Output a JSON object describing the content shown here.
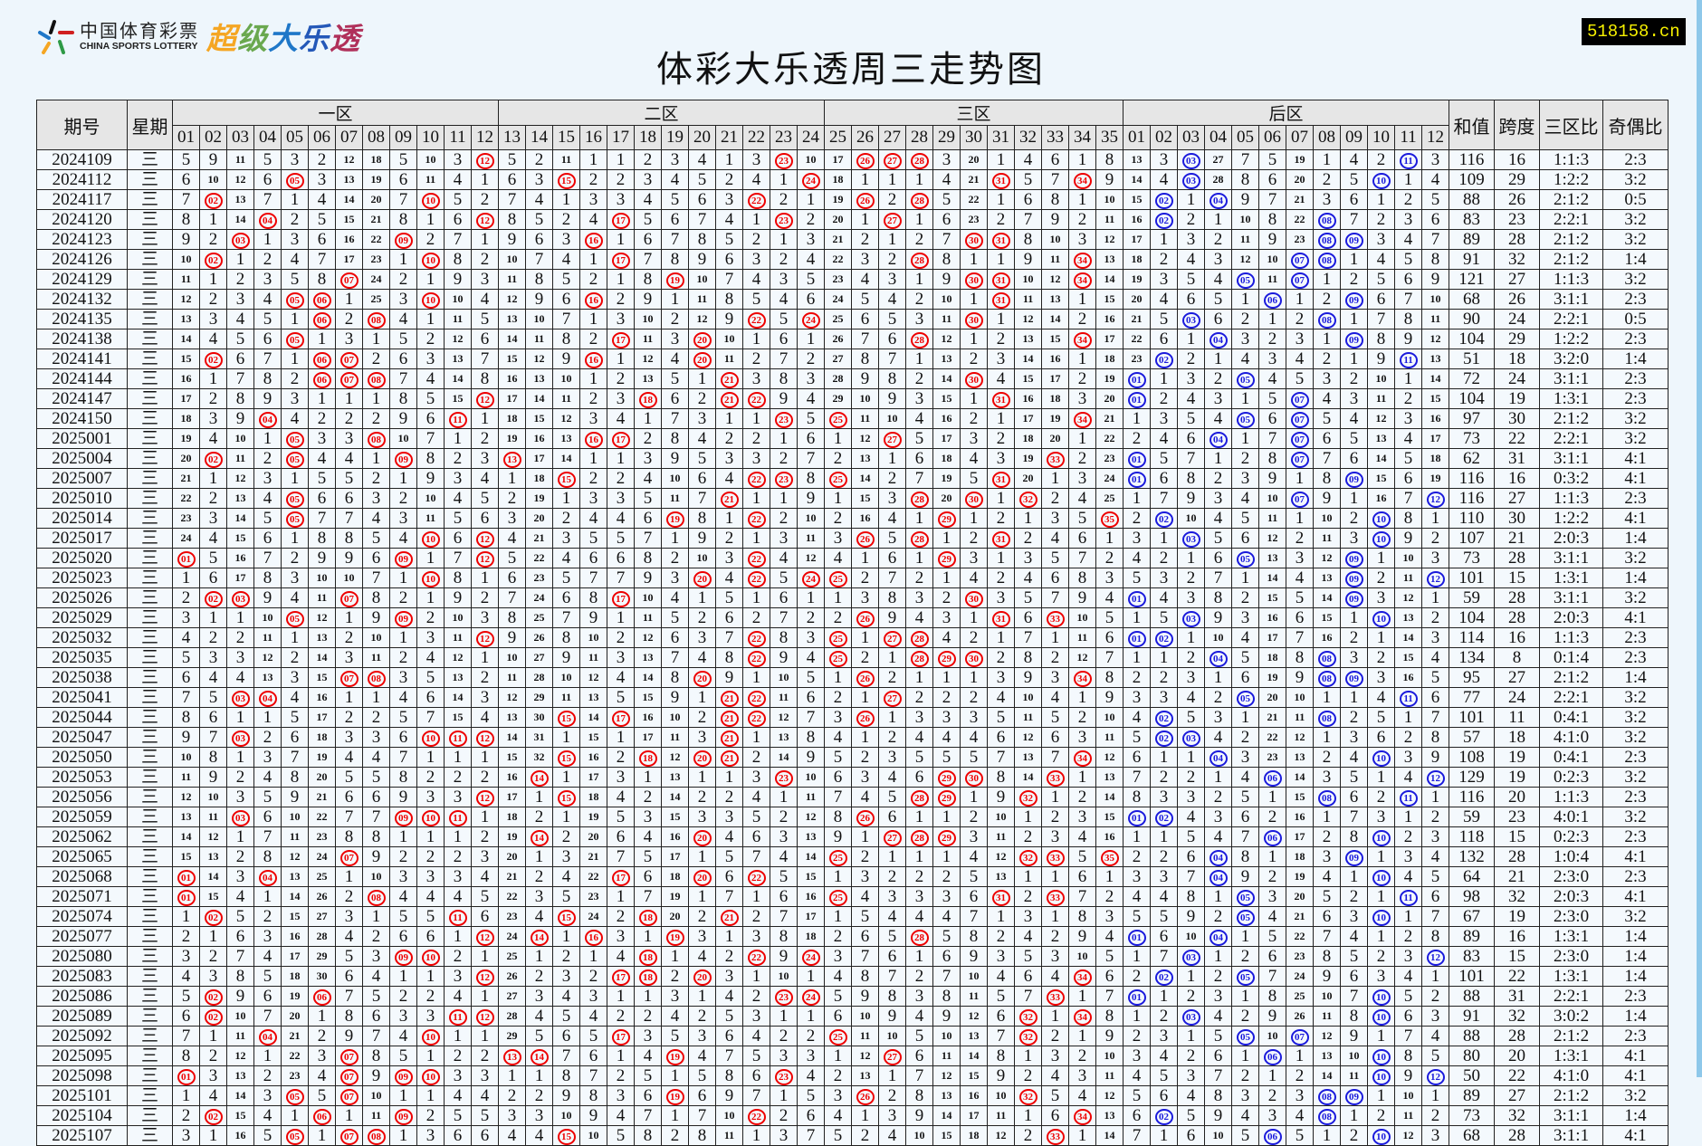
{
  "header": {
    "logo_cn": "中国体育彩票",
    "logo_en": "CHINA SPORTS LOTTERY",
    "brand_chars": [
      "超",
      "级",
      "大",
      "乐",
      "透"
    ],
    "brand_colors": [
      "#f5a623",
      "#6aa84f",
      "#1f77c8",
      "#2458b8",
      "#b0305a"
    ],
    "title": "体彩大乐透周三走势图",
    "site": "518158.cn"
  },
  "columns": {
    "period": "期号",
    "weekday": "星期",
    "zones": [
      "一区",
      "二区",
      "三区",
      "后区"
    ],
    "sum": "和值",
    "span": "跨度",
    "zone_ratio": "三区比",
    "odd_even": "奇偶比",
    "front_numbers": [
      "01",
      "02",
      "03",
      "04",
      "05",
      "06",
      "07",
      "08",
      "09",
      "10",
      "11",
      "12",
      "13",
      "14",
      "15",
      "16",
      "17",
      "18",
      "19",
      "20",
      "21",
      "22",
      "23",
      "24",
      "25",
      "26",
      "27",
      "28",
      "29",
      "30",
      "31",
      "32",
      "33",
      "34",
      "35"
    ],
    "back_numbers": [
      "01",
      "02",
      "03",
      "04",
      "05",
      "06",
      "07",
      "08",
      "09",
      "10",
      "11",
      "12"
    ]
  },
  "colors": {
    "front_hit": "#e00000",
    "back_hit": "#1a1adc"
  },
  "first_row_omission": {
    "front": [
      5,
      9,
      11,
      5,
      3,
      2,
      12,
      18,
      5,
      10,
      3,
      null,
      5,
      2,
      11,
      1,
      1,
      2,
      3,
      4,
      1,
      3,
      null,
      10,
      17,
      null,
      null,
      null,
      3,
      20,
      1,
      4,
      6,
      1,
      8
    ],
    "back": [
      13,
      3,
      null,
      27,
      7,
      5,
      19,
      1,
      4,
      2,
      null,
      3
    ]
  },
  "rows": [
    {
      "period": "2024109",
      "weekday": "三",
      "front": [
        12,
        23,
        26,
        27,
        28
      ],
      "back": [
        3,
        11
      ],
      "sum": "116",
      "span": "16",
      "zone_ratio": "1:1:3",
      "odd_even": "2:3"
    },
    {
      "period": "2024112",
      "weekday": "三",
      "front": [
        5,
        15,
        24,
        31,
        34
      ],
      "back": [
        3,
        10
      ],
      "sum": "109",
      "span": "29",
      "zone_ratio": "1:2:2",
      "odd_even": "3:2"
    },
    {
      "period": "2024117",
      "weekday": "三",
      "front": [
        2,
        10,
        22,
        26,
        28
      ],
      "back": [
        2,
        4
      ],
      "sum": "88",
      "span": "26",
      "zone_ratio": "2:1:2",
      "odd_even": "0:5"
    },
    {
      "period": "2024120",
      "weekday": "三",
      "front": [
        4,
        12,
        17,
        23,
        27
      ],
      "back": [
        2,
        8
      ],
      "sum": "83",
      "span": "23",
      "zone_ratio": "2:2:1",
      "odd_even": "3:2"
    },
    {
      "period": "2024123",
      "weekday": "三",
      "front": [
        3,
        9,
        16,
        30,
        31
      ],
      "back": [
        8,
        9
      ],
      "sum": "89",
      "span": "28",
      "zone_ratio": "2:1:2",
      "odd_even": "3:2"
    },
    {
      "period": "2024126",
      "weekday": "三",
      "front": [
        2,
        10,
        17,
        28,
        34
      ],
      "back": [
        7,
        8
      ],
      "sum": "91",
      "span": "32",
      "zone_ratio": "2:1:2",
      "odd_even": "1:4"
    },
    {
      "period": "2024129",
      "weekday": "三",
      "front": [
        7,
        19,
        30,
        31,
        34
      ],
      "back": [
        5,
        7
      ],
      "sum": "121",
      "span": "27",
      "zone_ratio": "1:1:3",
      "odd_even": "3:2"
    },
    {
      "period": "2024132",
      "weekday": "三",
      "front": [
        5,
        6,
        10,
        16,
        31
      ],
      "back": [
        6,
        9
      ],
      "sum": "68",
      "span": "26",
      "zone_ratio": "3:1:1",
      "odd_even": "2:3"
    },
    {
      "period": "2024135",
      "weekday": "三",
      "front": [
        6,
        8,
        22,
        24,
        30
      ],
      "back": [
        3,
        8
      ],
      "sum": "90",
      "span": "24",
      "zone_ratio": "2:2:1",
      "odd_even": "0:5"
    },
    {
      "period": "2024138",
      "weekday": "三",
      "front": [
        5,
        17,
        20,
        28,
        34
      ],
      "back": [
        4,
        9
      ],
      "sum": "104",
      "span": "29",
      "zone_ratio": "1:2:2",
      "odd_even": "2:3"
    },
    {
      "period": "2024141",
      "weekday": "三",
      "front": [
        2,
        6,
        7,
        16,
        20
      ],
      "back": [
        2,
        11
      ],
      "sum": "51",
      "span": "18",
      "zone_ratio": "3:2:0",
      "odd_even": "1:4"
    },
    {
      "period": "2024144",
      "weekday": "三",
      "front": [
        6,
        7,
        8,
        21,
        30
      ],
      "back": [
        1,
        5
      ],
      "sum": "72",
      "span": "24",
      "zone_ratio": "3:1:1",
      "odd_even": "2:3"
    },
    {
      "period": "2024147",
      "weekday": "三",
      "front": [
        12,
        18,
        21,
        22,
        31
      ],
      "back": [
        1,
        7
      ],
      "sum": "104",
      "span": "19",
      "zone_ratio": "1:3:1",
      "odd_even": "2:3"
    },
    {
      "period": "2024150",
      "weekday": "三",
      "front": [
        4,
        11,
        23,
        25,
        34
      ],
      "back": [
        5,
        7
      ],
      "sum": "97",
      "span": "30",
      "zone_ratio": "2:1:2",
      "odd_even": "3:2"
    },
    {
      "period": "2025001",
      "weekday": "三",
      "front": [
        5,
        8,
        16,
        17,
        27
      ],
      "back": [
        4,
        7
      ],
      "sum": "73",
      "span": "22",
      "zone_ratio": "2:2:1",
      "odd_even": "3:2"
    },
    {
      "period": "2025004",
      "weekday": "三",
      "front": [
        2,
        5,
        9,
        13,
        33
      ],
      "back": [
        1,
        7
      ],
      "sum": "62",
      "span": "31",
      "zone_ratio": "3:1:1",
      "odd_even": "4:1"
    },
    {
      "period": "2025007",
      "weekday": "三",
      "front": [
        15,
        22,
        23,
        25,
        31
      ],
      "back": [
        1,
        9
      ],
      "sum": "116",
      "span": "16",
      "zone_ratio": "0:3:2",
      "odd_even": "4:1"
    },
    {
      "period": "2025010",
      "weekday": "三",
      "front": [
        5,
        21,
        28,
        30,
        32
      ],
      "back": [
        7,
        12
      ],
      "sum": "116",
      "span": "27",
      "zone_ratio": "1:1:3",
      "odd_even": "2:3"
    },
    {
      "period": "2025014",
      "weekday": "三",
      "front": [
        5,
        19,
        22,
        29,
        35
      ],
      "back": [
        2,
        10
      ],
      "sum": "110",
      "span": "30",
      "zone_ratio": "1:2:2",
      "odd_even": "4:1"
    },
    {
      "period": "2025017",
      "weekday": "三",
      "front": [
        10,
        12,
        26,
        28,
        31
      ],
      "back": [
        3,
        10
      ],
      "sum": "107",
      "span": "21",
      "zone_ratio": "2:0:3",
      "odd_even": "1:4"
    },
    {
      "period": "2025020",
      "weekday": "三",
      "front": [
        1,
        9,
        12,
        22,
        29
      ],
      "back": [
        5,
        9
      ],
      "sum": "73",
      "span": "28",
      "zone_ratio": "3:1:1",
      "odd_even": "3:2"
    },
    {
      "period": "2025023",
      "weekday": "三",
      "front": [
        10,
        20,
        22,
        24,
        25
      ],
      "back": [
        9,
        12
      ],
      "sum": "101",
      "span": "15",
      "zone_ratio": "1:3:1",
      "odd_even": "1:4"
    },
    {
      "period": "2025026",
      "weekday": "三",
      "front": [
        2,
        3,
        7,
        17,
        30
      ],
      "back": [
        1,
        9
      ],
      "sum": "59",
      "span": "28",
      "zone_ratio": "3:1:1",
      "odd_even": "3:2"
    },
    {
      "period": "2025029",
      "weekday": "三",
      "front": [
        5,
        9,
        26,
        31,
        33
      ],
      "back": [
        3,
        10
      ],
      "sum": "104",
      "span": "28",
      "zone_ratio": "2:0:3",
      "odd_even": "4:1"
    },
    {
      "period": "2025032",
      "weekday": "三",
      "front": [
        12,
        22,
        25,
        27,
        28
      ],
      "back": [
        1,
        2
      ],
      "sum": "114",
      "span": "16",
      "zone_ratio": "1:1:3",
      "odd_even": "2:3"
    },
    {
      "period": "2025035",
      "weekday": "三",
      "front": [
        22,
        25,
        28,
        29,
        30
      ],
      "back": [
        4,
        8
      ],
      "sum": "134",
      "span": "8",
      "zone_ratio": "0:1:4",
      "odd_even": "2:3"
    },
    {
      "period": "2025038",
      "weekday": "三",
      "front": [
        7,
        8,
        20,
        26,
        34
      ],
      "back": [
        8,
        9
      ],
      "sum": "95",
      "span": "27",
      "zone_ratio": "2:1:2",
      "odd_even": "1:4"
    },
    {
      "period": "2025041",
      "weekday": "三",
      "front": [
        3,
        4,
        21,
        22,
        27
      ],
      "back": [
        5,
        11
      ],
      "sum": "77",
      "span": "24",
      "zone_ratio": "2:2:1",
      "odd_even": "3:2"
    },
    {
      "period": "2025044",
      "weekday": "三",
      "front": [
        15,
        17,
        21,
        22,
        26
      ],
      "back": [
        2,
        8
      ],
      "sum": "101",
      "span": "11",
      "zone_ratio": "0:4:1",
      "odd_even": "3:2"
    },
    {
      "period": "2025047",
      "weekday": "三",
      "front": [
        3,
        10,
        11,
        12,
        21
      ],
      "back": [
        2,
        3
      ],
      "sum": "57",
      "span": "18",
      "zone_ratio": "4:1:0",
      "odd_even": "3:2"
    },
    {
      "period": "2025050",
      "weekday": "三",
      "front": [
        15,
        18,
        20,
        21,
        34
      ],
      "back": [
        4,
        10
      ],
      "sum": "108",
      "span": "19",
      "zone_ratio": "0:4:1",
      "odd_even": "2:3"
    },
    {
      "period": "2025053",
      "weekday": "三",
      "front": [
        14,
        23,
        29,
        30,
        33
      ],
      "back": [
        6,
        12
      ],
      "sum": "129",
      "span": "19",
      "zone_ratio": "0:2:3",
      "odd_even": "3:2"
    },
    {
      "period": "2025056",
      "weekday": "三",
      "front": [
        12,
        15,
        28,
        29,
        32
      ],
      "back": [
        8,
        11
      ],
      "sum": "116",
      "span": "20",
      "zone_ratio": "1:1:3",
      "odd_even": "2:3"
    },
    {
      "period": "2025059",
      "weekday": "三",
      "front": [
        3,
        9,
        10,
        11,
        26
      ],
      "back": [
        1,
        2
      ],
      "sum": "59",
      "span": "23",
      "zone_ratio": "4:0:1",
      "odd_even": "3:2"
    },
    {
      "period": "2025062",
      "weekday": "三",
      "front": [
        14,
        20,
        27,
        28,
        29
      ],
      "back": [
        6,
        10
      ],
      "sum": "118",
      "span": "15",
      "zone_ratio": "0:2:3",
      "odd_even": "2:3"
    },
    {
      "period": "2025065",
      "weekday": "三",
      "front": [
        7,
        25,
        32,
        33,
        35
      ],
      "back": [
        4,
        9
      ],
      "sum": "132",
      "span": "28",
      "zone_ratio": "1:0:4",
      "odd_even": "4:1"
    },
    {
      "period": "2025068",
      "weekday": "三",
      "front": [
        1,
        4,
        17,
        20,
        22
      ],
      "back": [
        4,
        10
      ],
      "sum": "64",
      "span": "21",
      "zone_ratio": "2:3:0",
      "odd_even": "2:3"
    },
    {
      "period": "2025071",
      "weekday": "三",
      "front": [
        1,
        8,
        25,
        31,
        33
      ],
      "back": [
        5,
        11
      ],
      "sum": "98",
      "span": "32",
      "zone_ratio": "2:0:3",
      "odd_even": "4:1"
    },
    {
      "period": "2025074",
      "weekday": "三",
      "front": [
        2,
        11,
        15,
        18,
        21
      ],
      "back": [
        5,
        10
      ],
      "sum": "67",
      "span": "19",
      "zone_ratio": "2:3:0",
      "odd_even": "3:2"
    },
    {
      "period": "2025077",
      "weekday": "三",
      "front": [
        12,
        14,
        16,
        19,
        28
      ],
      "back": [
        1,
        4
      ],
      "sum": "89",
      "span": "16",
      "zone_ratio": "1:3:1",
      "odd_even": "1:4"
    },
    {
      "period": "2025080",
      "weekday": "三",
      "front": [
        9,
        10,
        18,
        22,
        24
      ],
      "back": [
        3,
        12
      ],
      "sum": "83",
      "span": "15",
      "zone_ratio": "2:3:0",
      "odd_even": "1:4"
    },
    {
      "period": "2025083",
      "weekday": "三",
      "front": [
        12,
        17,
        18,
        20,
        34
      ],
      "back": [
        2,
        5
      ],
      "sum": "101",
      "span": "22",
      "zone_ratio": "1:3:1",
      "odd_even": "1:4"
    },
    {
      "period": "2025086",
      "weekday": "三",
      "front": [
        2,
        6,
        23,
        24,
        33
      ],
      "back": [
        1,
        10
      ],
      "sum": "88",
      "span": "31",
      "zone_ratio": "2:2:1",
      "odd_even": "2:3"
    },
    {
      "period": "2025089",
      "weekday": "三",
      "front": [
        2,
        11,
        12,
        32,
        34
      ],
      "back": [
        3,
        10
      ],
      "sum": "91",
      "span": "32",
      "zone_ratio": "3:0:2",
      "odd_even": "1:4"
    },
    {
      "period": "2025092",
      "weekday": "三",
      "front": [
        4,
        10,
        17,
        25,
        32
      ],
      "back": [
        5,
        7
      ],
      "sum": "88",
      "span": "28",
      "zone_ratio": "2:1:2",
      "odd_even": "2:3"
    },
    {
      "period": "2025095",
      "weekday": "三",
      "front": [
        7,
        13,
        14,
        19,
        27
      ],
      "back": [
        6,
        10
      ],
      "sum": "80",
      "span": "20",
      "zone_ratio": "1:3:1",
      "odd_even": "4:1"
    },
    {
      "period": "2025098",
      "weekday": "三",
      "front": [
        1,
        7,
        9,
        10,
        23
      ],
      "back": [
        10,
        12
      ],
      "sum": "50",
      "span": "22",
      "zone_ratio": "4:1:0",
      "odd_even": "4:1"
    },
    {
      "period": "2025101",
      "weekday": "三",
      "front": [
        5,
        7,
        19,
        26,
        32
      ],
      "back": [
        8,
        9
      ],
      "sum": "89",
      "span": "27",
      "zone_ratio": "2:1:2",
      "odd_even": "3:2"
    },
    {
      "period": "2025104",
      "weekday": "三",
      "front": [
        2,
        6,
        9,
        22,
        34
      ],
      "back": [
        2,
        8
      ],
      "sum": "73",
      "span": "32",
      "zone_ratio": "3:1:1",
      "odd_even": "1:4"
    },
    {
      "period": "2025107",
      "weekday": "三",
      "front": [
        5,
        7,
        8,
        15,
        33
      ],
      "back": [
        6,
        10
      ],
      "sum": "68",
      "span": "28",
      "zone_ratio": "3:1:1",
      "odd_even": "4:1"
    }
  ]
}
